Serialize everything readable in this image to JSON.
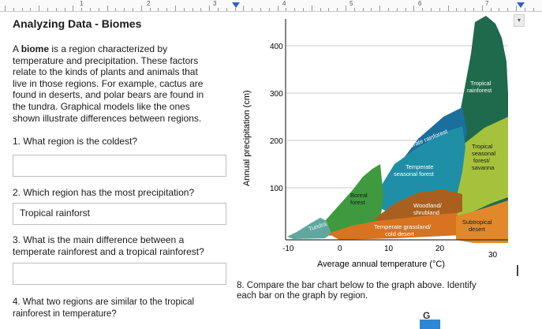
{
  "ruler": {
    "numbers": [
      "1",
      "2",
      "3",
      "4",
      "5",
      "6",
      "7"
    ]
  },
  "page_title": "Analyzing Data -  Biomes",
  "intro": {
    "lines": [
      "A biome is a region characterized by",
      "temperature and precipitation.  These factors",
      "relate to the kinds of plants and animals that",
      "live in those regions.  For example, cactus are",
      "found in deserts, and polar bears are found in",
      "the tundra.  Graphical models like the ones",
      "shown illustrate differences between regions."
    ]
  },
  "questions": {
    "q1": "1. What region is the coldest?",
    "q2": "2. Which region has the most precipitation?",
    "q2_answer": "Tropical rainforst",
    "q3_line1": "3. What is the main difference between a",
    "q3_line2": "temperate rainforest and a tropical rainforest?",
    "q4_line1": "4.  What two regions are similar to the tropical",
    "q4_line2": "rainforest in temperature?",
    "q8_line1": "8.  Compare the bar chart below to the graph above.  Identify",
    "q8_line2": "each bar on the graph by region.",
    "bar_label": "G"
  },
  "chart_data": {
    "type": "area",
    "xlabel": "Average annual temperature (°C)",
    "ylabel": "Annual precipitation (cm)",
    "xlim": [
      -15,
      33
    ],
    "ylim": [
      0,
      420
    ],
    "x_ticks": [
      "-10",
      "0",
      "10",
      "20",
      "30"
    ],
    "y_ticks": [
      "100",
      "200",
      "300",
      "400"
    ],
    "regions": [
      {
        "name": "Tundra",
        "color": "#5fa8a0"
      },
      {
        "name": "Boreal forest",
        "color": "#3f9a3f"
      },
      {
        "name": "Temperate seasonal forest",
        "color": "#1f8fa8"
      },
      {
        "name": "Temperate rainforest",
        "color": "#1a6f9c"
      },
      {
        "name": "Tropical rainforest",
        "color": "#1f6a4c"
      },
      {
        "name": "Tropical seasonal forest/ savanna",
        "color": "#a6c23c"
      },
      {
        "name": "Woodland/ shrubland",
        "color": "#a9601f"
      },
      {
        "name": "Temperate grassland/ cold desert",
        "color": "#d8731f"
      },
      {
        "name": "Subtropical desert",
        "color": "#e1892a"
      }
    ],
    "labels": {
      "tropical_rainforest": [
        "Tropical",
        "rainforest"
      ],
      "temperate_rainforest": "Temperate rainforest",
      "tropical_seasonal": [
        "Tropical",
        "seasonal",
        "forest/",
        "savanna"
      ],
      "temperate_seasonal": [
        "Temperate",
        "seasonal forest"
      ],
      "boreal": [
        "Boreal",
        "forest"
      ],
      "woodland": [
        "Woodland/",
        "shrubland"
      ],
      "tundra": "Tundra",
      "grassland": [
        "Temperate grassland/",
        "cold desert"
      ],
      "subtropical_desert": [
        "Subtropical",
        "desert"
      ]
    }
  }
}
